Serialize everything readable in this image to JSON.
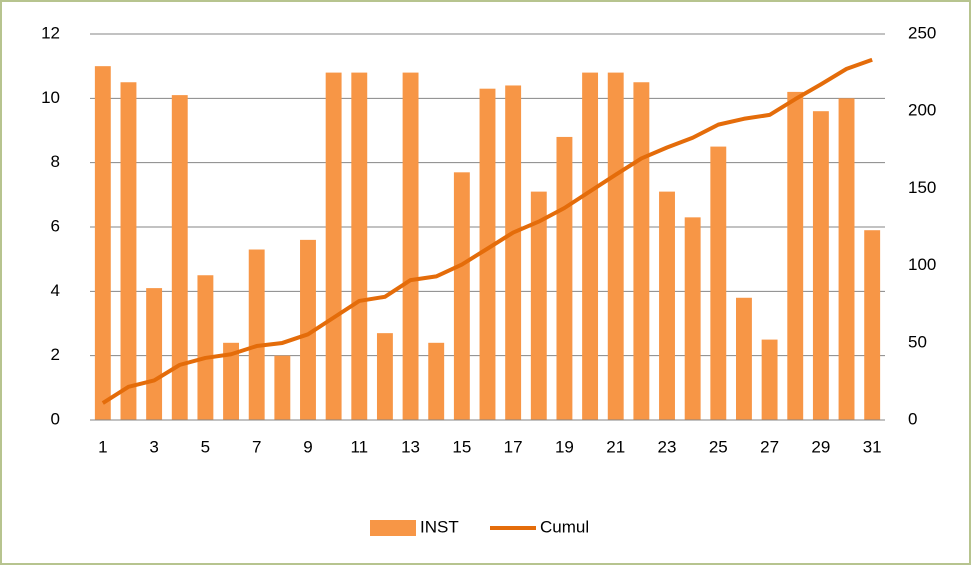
{
  "chart_data": {
    "type": "bar",
    "categories": [
      1,
      null,
      3,
      null,
      5,
      null,
      7,
      null,
      9,
      null,
      11,
      null,
      13,
      null,
      15,
      null,
      17,
      null,
      19,
      null,
      21,
      null,
      23,
      null,
      25,
      null,
      27,
      null,
      29,
      null,
      31
    ],
    "series": [
      {
        "name": "INST",
        "color": "#f79646",
        "values": [
          11.0,
          10.5,
          4.1,
          10.1,
          4.5,
          2.4,
          5.3,
          2.0,
          5.6,
          10.8,
          10.8,
          2.7,
          10.8,
          2.4,
          7.7,
          10.3,
          10.4,
          7.1,
          8.8,
          10.8,
          10.8,
          10.5,
          7.1,
          6.3,
          8.5,
          3.8,
          2.5,
          10.2,
          9.6,
          10.0,
          5.9
        ]
      },
      {
        "name": "Cumul",
        "color": "#e46c0a",
        "type": "line",
        "axis": "y2",
        "values": [
          11,
          21.5,
          25.6,
          35.7,
          40.2,
          42.6,
          47.9,
          49.9,
          55.5,
          66.3,
          77.1,
          79.8,
          90.6,
          93,
          100.7,
          111,
          121.4,
          128.5,
          137.3,
          148.1,
          158.9,
          169.4,
          176.5,
          182.8,
          191.3,
          195.1,
          197.6,
          207.8,
          217.4,
          227.4,
          233.3
        ]
      }
    ],
    "ylim": [
      0,
      12
    ],
    "yticks": [
      0,
      2,
      4,
      6,
      8,
      10,
      12
    ],
    "y2lim": [
      0,
      250
    ],
    "y2ticks": [
      0,
      50,
      100,
      150,
      200,
      250
    ],
    "grid": true,
    "legend": "bottom"
  }
}
